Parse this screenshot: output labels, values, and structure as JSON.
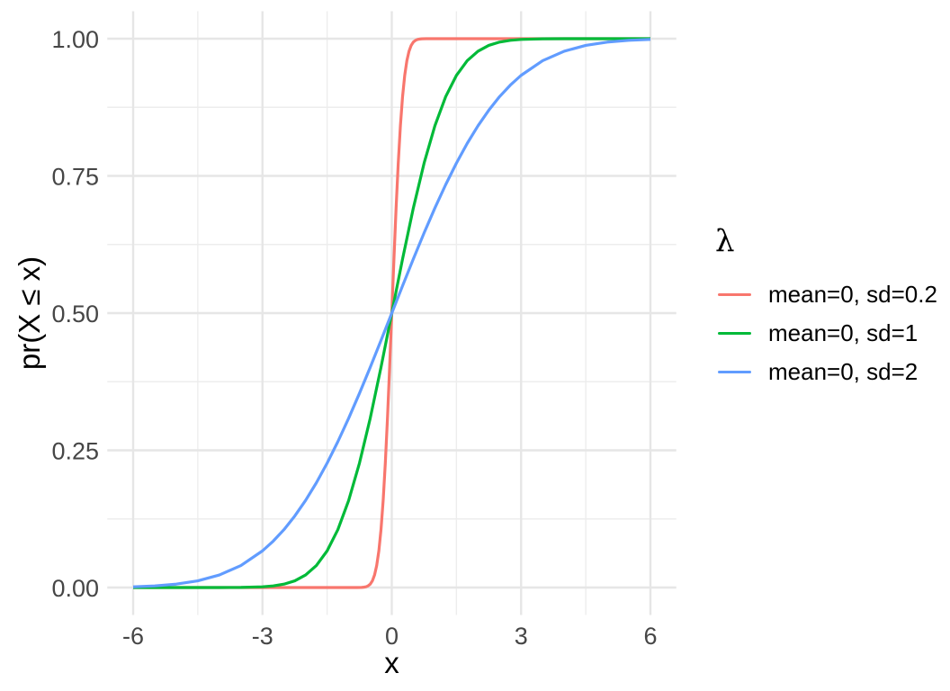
{
  "figure": {
    "background": "#ffffff",
    "grid_major_color": "#e6e6e6",
    "grid_minor_color": "#ededed",
    "tick_text_color": "#464646"
  },
  "chart_data": {
    "type": "line",
    "title": "",
    "xlabel": "x",
    "ylabel": "pr(X ≤ x)",
    "legend_title": "λ",
    "legend_position": "right",
    "grid": true,
    "xlim": [
      -6.6,
      6.6
    ],
    "ylim": [
      -0.05,
      1.05
    ],
    "x_tick_values": [
      -6,
      -3,
      0,
      3,
      6
    ],
    "x_tick_labels": [
      "-6",
      "-3",
      "0",
      "3",
      "6"
    ],
    "x_minor_ticks": [
      -4.5,
      -1.5,
      1.5,
      4.5
    ],
    "y_tick_values": [
      0,
      0.25,
      0.5,
      0.75,
      1
    ],
    "y_tick_labels": [
      "0.00",
      "0.25",
      "0.50",
      "0.75",
      "1.00"
    ],
    "y_minor_ticks": [
      0.125,
      0.375,
      0.625,
      0.875
    ],
    "series": [
      {
        "name": "mean=0, sd=0.2",
        "color": "#F8766D",
        "mean": 0,
        "sd": 0.2,
        "points": [
          [
            -6,
            0
          ],
          [
            -2,
            0
          ],
          [
            -1,
            0
          ],
          [
            -0.8,
            0
          ],
          [
            -0.7,
            0.0002
          ],
          [
            -0.65,
            0.0006
          ],
          [
            -0.6,
            0.0013
          ],
          [
            -0.55,
            0.003
          ],
          [
            -0.5,
            0.0062
          ],
          [
            -0.45,
            0.0122
          ],
          [
            -0.4,
            0.0228
          ],
          [
            -0.35,
            0.0401
          ],
          [
            -0.3,
            0.0668
          ],
          [
            -0.25,
            0.1056
          ],
          [
            -0.2,
            0.1587
          ],
          [
            -0.15,
            0.2266
          ],
          [
            -0.1,
            0.3085
          ],
          [
            -0.05,
            0.4013
          ],
          [
            0,
            0.5
          ],
          [
            0.05,
            0.5987
          ],
          [
            0.1,
            0.6915
          ],
          [
            0.15,
            0.7734
          ],
          [
            0.2,
            0.8413
          ],
          [
            0.25,
            0.8944
          ],
          [
            0.3,
            0.9332
          ],
          [
            0.35,
            0.9599
          ],
          [
            0.4,
            0.9772
          ],
          [
            0.45,
            0.9878
          ],
          [
            0.5,
            0.9938
          ],
          [
            0.55,
            0.997
          ],
          [
            0.6,
            0.9987
          ],
          [
            0.65,
            0.9994
          ],
          [
            0.7,
            0.9998
          ],
          [
            0.8,
            1
          ],
          [
            1,
            1
          ],
          [
            2,
            1
          ],
          [
            6,
            1
          ]
        ]
      },
      {
        "name": "mean=0, sd=1",
        "color": "#00BA38",
        "mean": 0,
        "sd": 1,
        "points": [
          [
            -6,
            0
          ],
          [
            -4,
            0
          ],
          [
            -3.5,
            0.0002
          ],
          [
            -3,
            0.0013
          ],
          [
            -2.75,
            0.003
          ],
          [
            -2.5,
            0.0062
          ],
          [
            -2.25,
            0.0122
          ],
          [
            -2,
            0.0228
          ],
          [
            -1.75,
            0.0401
          ],
          [
            -1.5,
            0.0668
          ],
          [
            -1.25,
            0.1056
          ],
          [
            -1,
            0.1587
          ],
          [
            -0.75,
            0.2266
          ],
          [
            -0.5,
            0.3085
          ],
          [
            -0.25,
            0.4013
          ],
          [
            0,
            0.5
          ],
          [
            0.25,
            0.5987
          ],
          [
            0.5,
            0.6915
          ],
          [
            0.75,
            0.7734
          ],
          [
            1,
            0.8413
          ],
          [
            1.25,
            0.8944
          ],
          [
            1.5,
            0.9332
          ],
          [
            1.75,
            0.9599
          ],
          [
            2,
            0.9772
          ],
          [
            2.25,
            0.9878
          ],
          [
            2.5,
            0.9938
          ],
          [
            2.75,
            0.997
          ],
          [
            3,
            0.9987
          ],
          [
            3.5,
            0.9998
          ],
          [
            4,
            1
          ],
          [
            6,
            1
          ]
        ]
      },
      {
        "name": "mean=0, sd=2",
        "color": "#619CFF",
        "mean": 0,
        "sd": 2,
        "points": [
          [
            -6,
            0.0013
          ],
          [
            -5.5,
            0.003
          ],
          [
            -5,
            0.0062
          ],
          [
            -4.5,
            0.0122
          ],
          [
            -4,
            0.0228
          ],
          [
            -3.5,
            0.0401
          ],
          [
            -3,
            0.0668
          ],
          [
            -2.75,
            0.0846
          ],
          [
            -2.5,
            0.1056
          ],
          [
            -2.25,
            0.1304
          ],
          [
            -2,
            0.1587
          ],
          [
            -1.75,
            0.1908
          ],
          [
            -1.5,
            0.2266
          ],
          [
            -1.25,
            0.266
          ],
          [
            -1,
            0.3085
          ],
          [
            -0.75,
            0.3538
          ],
          [
            -0.5,
            0.4013
          ],
          [
            -0.25,
            0.4503
          ],
          [
            0,
            0.5
          ],
          [
            0.25,
            0.5497
          ],
          [
            0.5,
            0.5987
          ],
          [
            0.75,
            0.6462
          ],
          [
            1,
            0.6915
          ],
          [
            1.25,
            0.734
          ],
          [
            1.5,
            0.7734
          ],
          [
            1.75,
            0.8092
          ],
          [
            2,
            0.8413
          ],
          [
            2.25,
            0.8696
          ],
          [
            2.5,
            0.8944
          ],
          [
            2.75,
            0.9154
          ],
          [
            3,
            0.9332
          ],
          [
            3.5,
            0.9599
          ],
          [
            4,
            0.9772
          ],
          [
            4.5,
            0.9878
          ],
          [
            5,
            0.9938
          ],
          [
            5.5,
            0.997
          ],
          [
            6,
            0.9987
          ]
        ]
      }
    ]
  }
}
